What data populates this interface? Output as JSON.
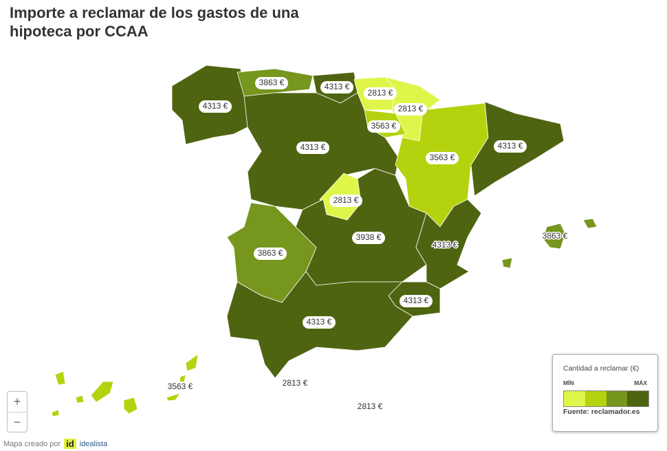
{
  "title": "Importe a reclamar de los gastos de una hipoteca por CCAA",
  "map": {
    "labels": [
      "4313 €",
      "3863 €",
      "4313 €",
      "2813 €",
      "2813 €",
      "3563 €",
      "4313 €",
      "3563 €",
      "4313 €",
      "2813 €",
      "3938 €",
      "3863 €",
      "4313 €",
      "3863 €",
      "4313 €",
      "4313 €",
      "2813 €",
      "2813 €",
      "3563 €"
    ]
  },
  "legend": {
    "title": "Cantidad a reclamar (€)",
    "min": "MÍN",
    "max": "MÁX",
    "source": "Fuente: reclamador.es"
  },
  "zoom": {
    "in": "+",
    "out": "−"
  },
  "footer": {
    "credit": "Mapa creado por",
    "logo": "id",
    "brand": "idealista"
  }
}
